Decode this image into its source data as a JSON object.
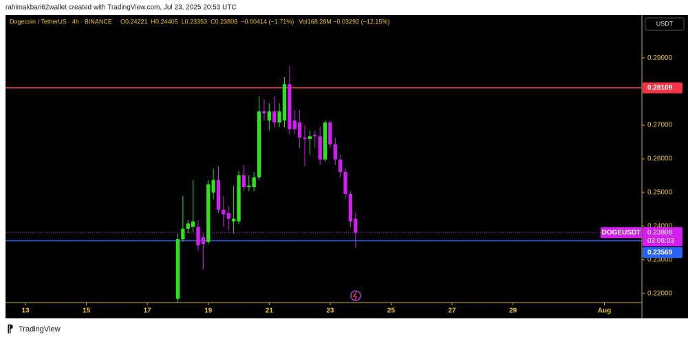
{
  "header": {
    "attribution": "rahimakbari62wallet created with TradingView.com, Jul 23, 2025 20:53 UTC"
  },
  "footer": {
    "brand": "TradingView"
  },
  "chart_data": {
    "type": "candlestick",
    "title": "Dogecoin / TetherUS · 4h · BINANCE",
    "ohlc_header": [
      "O0.24221",
      "H0.24405",
      "L0.23353",
      "C0.23808",
      "−0.00414 (−1.71%)"
    ],
    "volume_header": "Vol168.28M −0.03292 (−12.15%)",
    "currency": "USDT",
    "symbol_label": "DOGEUSDT",
    "countdown": "03:06:03",
    "up_color": "#2ee21c",
    "down_color": "#d21ef0",
    "x": [
      18,
      18.1667,
      18.3333,
      18.5,
      18.6667,
      18.8333,
      19,
      19.1667,
      19.3333,
      19.5,
      19.6667,
      19.8333,
      20,
      20.1667,
      20.3333,
      20.5,
      20.6667,
      20.8333,
      21,
      21.1667,
      21.3333,
      21.5,
      21.6667,
      21.8333,
      22,
      22.1667,
      22.3333,
      22.5,
      22.6667,
      22.8333,
      23,
      23.1667,
      23.3333,
      23.5,
      23.6667,
      23.8333
    ],
    "open": [
      0.2184,
      0.2361,
      0.2392,
      0.2398,
      0.2398,
      0.2367,
      0.2353,
      0.25,
      0.2537,
      0.2449,
      0.2439,
      0.2414,
      0.2414,
      0.2551,
      0.2516,
      0.2516,
      0.2545,
      0.2741,
      0.2714,
      0.2741,
      0.2708,
      0.2714,
      0.2822,
      0.2714,
      0.2708,
      0.2663,
      0.2659,
      0.2671,
      0.2667,
      0.2598,
      0.2708,
      0.2643,
      0.2598,
      0.2561,
      0.2496,
      0.24221
    ],
    "high": [
      0.2378,
      0.249,
      0.2418,
      0.2537,
      0.2418,
      0.2378,
      0.2537,
      0.2571,
      0.2578,
      0.249,
      0.2459,
      0.252,
      0.2565,
      0.2582,
      0.2551,
      0.2561,
      0.2786,
      0.2776,
      0.2765,
      0.2786,
      0.2765,
      0.2843,
      0.2876,
      0.2745,
      0.2745,
      0.27,
      0.2684,
      0.2684,
      0.2694,
      0.2714,
      0.2714,
      0.2663,
      0.2612,
      0.2571,
      0.2504,
      0.24405
    ],
    "low": [
      0.2173,
      0.2353,
      0.2378,
      0.2382,
      0.2327,
      0.2271,
      0.2347,
      0.248,
      0.2439,
      0.2398,
      0.2388,
      0.2378,
      0.2406,
      0.2504,
      0.2504,
      0.2504,
      0.2537,
      0.2714,
      0.2684,
      0.2694,
      0.2694,
      0.2694,
      0.2673,
      0.2673,
      0.2633,
      0.2578,
      0.2612,
      0.2633,
      0.2582,
      0.2592,
      0.2633,
      0.2582,
      0.2545,
      0.248,
      0.2398,
      0.23353
    ],
    "close": [
      0.2361,
      0.2392,
      0.2408,
      0.2414,
      0.2343,
      0.2347,
      0.2524,
      0.2537,
      0.2449,
      0.2435,
      0.2422,
      0.2422,
      0.2551,
      0.2516,
      0.252,
      0.2545,
      0.2741,
      0.2735,
      0.2741,
      0.2708,
      0.2741,
      0.2822,
      0.2688,
      0.2688,
      0.2663,
      0.2659,
      0.2667,
      0.2667,
      0.2598,
      0.2708,
      0.2643,
      0.2598,
      0.2561,
      0.2496,
      0.2414,
      0.23808
    ],
    "xlim": [
      12.345,
      33.23
    ],
    "xticks": [
      13,
      15,
      17,
      19,
      21,
      23,
      25,
      27,
      29,
      {
        "value": 32,
        "label": "Aug"
      }
    ],
    "ylim": [
      0.2173,
      0.3027
    ],
    "yticks": [
      {
        "value": 0.22,
        "label": "0.22000"
      },
      {
        "value": 0.23,
        "label": "0.23000"
      },
      {
        "value": 0.24,
        "label": "0.24000"
      },
      {
        "value": 0.25,
        "label": "0.25000"
      },
      {
        "value": 0.26,
        "label": "0.26000"
      },
      {
        "value": 0.27,
        "label": "0.27000"
      },
      {
        "value": 0.29,
        "label": "0.29000"
      }
    ],
    "levels": [
      {
        "value": 0.28109,
        "color": "#f23645"
      },
      {
        "value": 0.23569,
        "color": "#2962ff"
      }
    ]
  }
}
